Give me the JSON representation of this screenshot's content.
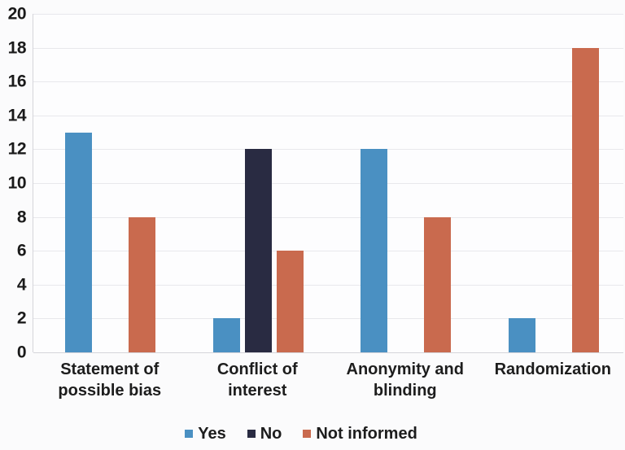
{
  "chart_data": {
    "type": "bar",
    "title": "",
    "categories": [
      "Statement of\npossible bias",
      "Conflict of\ninterest",
      "Anonymity and\nblinding",
      "Randomization"
    ],
    "series": [
      {
        "name": "Yes",
        "color": "#4a90c2",
        "values": [
          13,
          2,
          12,
          2
        ]
      },
      {
        "name": "No",
        "color": "#292b42",
        "values": [
          0,
          12,
          0,
          0
        ]
      },
      {
        "name": "Not informed",
        "color": "#c96a4e",
        "values": [
          8,
          6,
          8,
          18
        ]
      }
    ],
    "ylim": [
      0,
      20
    ],
    "yticks": [
      20,
      18,
      16,
      14,
      12,
      10,
      8,
      6,
      4,
      2,
      0
    ],
    "grid": true,
    "legend_position": "bottom"
  },
  "colors": {
    "gridline": "#e8e8ec",
    "axis_line": "#d5d5da",
    "text": "#1c1c1c",
    "background": "#fbfbfc"
  }
}
